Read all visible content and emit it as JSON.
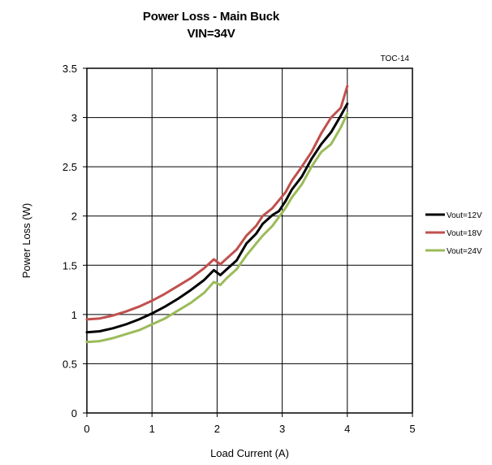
{
  "chart_data": {
    "type": "line",
    "title": "Power Loss - Main Buck",
    "subtitle": "VIN=34V",
    "annotation": "TOC-14",
    "xlabel": "Load Current (A)",
    "ylabel": "Power Loss (W)",
    "xlim": [
      0,
      5
    ],
    "ylim": [
      0,
      3.5
    ],
    "xticks": [
      "0",
      "1",
      "2",
      "3",
      "4",
      "5"
    ],
    "yticks": [
      "0",
      "0.5",
      "1",
      "1.5",
      "2",
      "2.5",
      "3",
      "3.5"
    ],
    "grid": true,
    "legend_position": "right",
    "series": [
      {
        "name": "Vout=12V",
        "color": "#000000",
        "x": [
          0,
          0.2,
          0.4,
          0.6,
          0.8,
          1.0,
          1.2,
          1.4,
          1.6,
          1.8,
          1.95,
          2.05,
          2.15,
          2.3,
          2.45,
          2.6,
          2.7,
          2.85,
          2.95,
          3.05,
          3.15,
          3.3,
          3.45,
          3.6,
          3.75,
          3.9,
          4.0
        ],
        "y": [
          0.82,
          0.83,
          0.86,
          0.9,
          0.95,
          1.01,
          1.08,
          1.16,
          1.25,
          1.35,
          1.45,
          1.4,
          1.46,
          1.55,
          1.72,
          1.82,
          1.92,
          2.01,
          2.05,
          2.15,
          2.27,
          2.4,
          2.58,
          2.73,
          2.85,
          3.02,
          3.14
        ]
      },
      {
        "name": "Vout=18V",
        "color": "#c0504d",
        "x": [
          0,
          0.2,
          0.4,
          0.6,
          0.8,
          1.0,
          1.2,
          1.4,
          1.6,
          1.8,
          1.95,
          2.05,
          2.15,
          2.3,
          2.45,
          2.6,
          2.7,
          2.85,
          2.95,
          3.05,
          3.15,
          3.3,
          3.45,
          3.6,
          3.75,
          3.9,
          4.0
        ],
        "y": [
          0.95,
          0.96,
          0.99,
          1.03,
          1.08,
          1.14,
          1.21,
          1.29,
          1.37,
          1.47,
          1.56,
          1.51,
          1.57,
          1.66,
          1.8,
          1.9,
          2.0,
          2.08,
          2.16,
          2.24,
          2.36,
          2.5,
          2.65,
          2.84,
          3.0,
          3.1,
          3.32
        ]
      },
      {
        "name": "Vout=24V",
        "color": "#9bbb59",
        "x": [
          0,
          0.2,
          0.4,
          0.6,
          0.8,
          1.0,
          1.2,
          1.4,
          1.6,
          1.8,
          1.95,
          2.05,
          2.15,
          2.3,
          2.45,
          2.6,
          2.7,
          2.85,
          2.95,
          3.05,
          3.15,
          3.3,
          3.45,
          3.6,
          3.75,
          3.9,
          4.0
        ],
        "y": [
          0.72,
          0.73,
          0.76,
          0.8,
          0.84,
          0.9,
          0.96,
          1.04,
          1.12,
          1.22,
          1.33,
          1.3,
          1.37,
          1.46,
          1.6,
          1.72,
          1.8,
          1.9,
          1.99,
          2.08,
          2.19,
          2.32,
          2.5,
          2.65,
          2.73,
          2.9,
          3.04
        ]
      }
    ]
  }
}
